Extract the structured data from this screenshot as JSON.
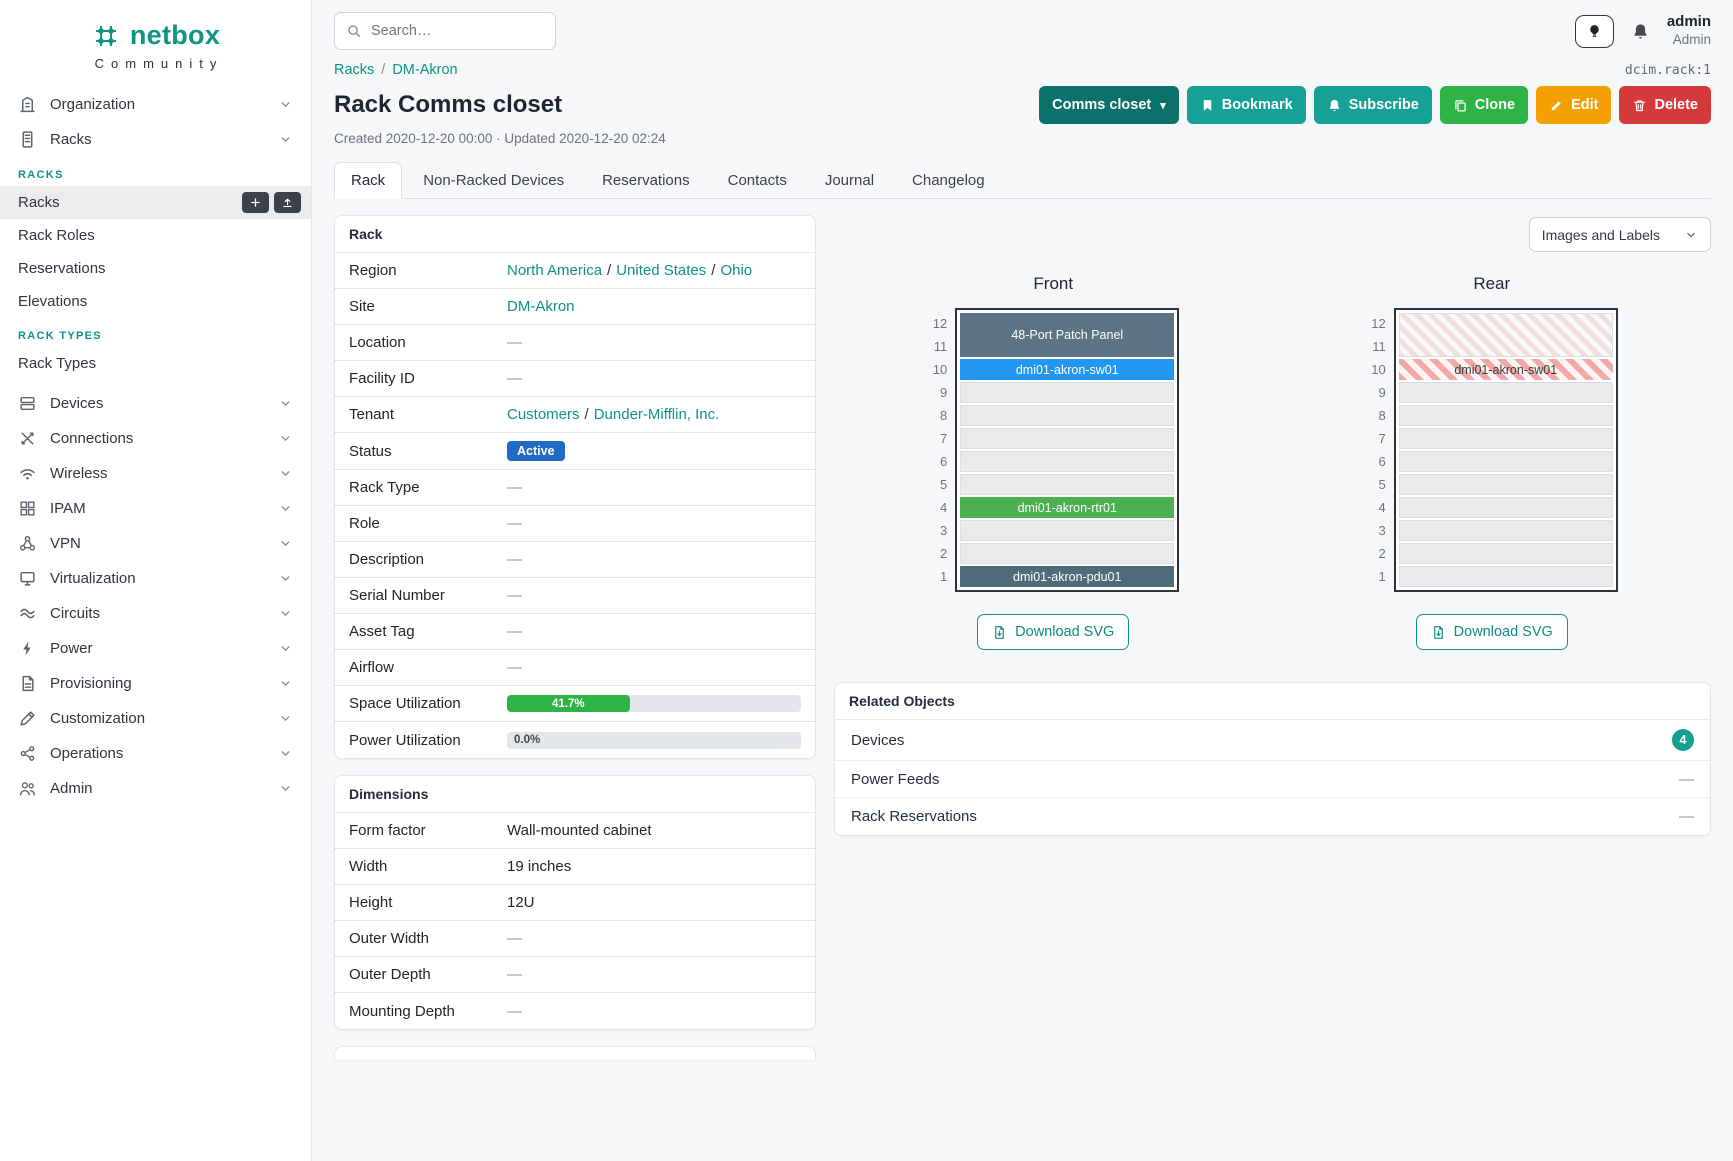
{
  "misc": {
    "sep": "/",
    "dash": "—"
  },
  "brand": {
    "name": "netbox",
    "tagline": "Community"
  },
  "topbar": {
    "search_placeholder": "Search…",
    "user_name": "admin",
    "user_role": "Admin"
  },
  "sidebar": {
    "items": [
      {
        "label": "Organization"
      },
      {
        "label": "Racks"
      },
      {
        "label": "Devices"
      },
      {
        "label": "Connections"
      },
      {
        "label": "Wireless"
      },
      {
        "label": "IPAM"
      },
      {
        "label": "VPN"
      },
      {
        "label": "Virtualization"
      },
      {
        "label": "Circuits"
      },
      {
        "label": "Power"
      },
      {
        "label": "Provisioning"
      },
      {
        "label": "Customization"
      },
      {
        "label": "Operations"
      },
      {
        "label": "Admin"
      }
    ],
    "racks_sections": [
      {
        "header": "RACKS",
        "items": [
          "Racks",
          "Rack Roles",
          "Reservations",
          "Elevations"
        ]
      },
      {
        "header": "RACK TYPES",
        "items": [
          "Rack Types"
        ]
      }
    ]
  },
  "breadcrumb": {
    "items": [
      "Racks",
      "DM-Akron"
    ]
  },
  "object_id": "dcim.rack:1",
  "page": {
    "title": "Rack Comms closet",
    "meta": "Created 2020-12-20 00:00 · Updated 2020-12-20 02:24"
  },
  "actions": {
    "context": "Comms closet",
    "bookmark": "Bookmark",
    "subscribe": "Subscribe",
    "clone": "Clone",
    "edit": "Edit",
    "delete": "Delete"
  },
  "tabs": [
    "Rack",
    "Non-Racked Devices",
    "Reservations",
    "Contacts",
    "Journal",
    "Changelog"
  ],
  "rack_panel": {
    "title": "Rack",
    "rows": {
      "region_label": "Region",
      "region": [
        "North America",
        "United States",
        "Ohio"
      ],
      "site_label": "Site",
      "site": "DM-Akron",
      "location_label": "Location",
      "facility_label": "Facility ID",
      "tenant_label": "Tenant",
      "tenant": [
        "Customers",
        "Dunder-Mifflin, Inc."
      ],
      "status_label": "Status",
      "status": "Active",
      "rack_type_label": "Rack Type",
      "role_label": "Role",
      "description_label": "Description",
      "serial_label": "Serial Number",
      "asset_label": "Asset Tag",
      "airflow_label": "Airflow",
      "space_label": "Space Utilization",
      "power_label": "Power Utilization"
    },
    "space_utilization": {
      "percent": 41.7,
      "label": "41.7%"
    },
    "power_utilization": {
      "percent": 0,
      "label": "0.0%"
    }
  },
  "dimensions_panel": {
    "title": "Dimensions",
    "rows": [
      {
        "label": "Form factor",
        "value": "Wall-mounted cabinet"
      },
      {
        "label": "Width",
        "value": "19 inches"
      },
      {
        "label": "Height",
        "value": "12U"
      },
      {
        "label": "Outer Width",
        "value": "—"
      },
      {
        "label": "Outer Depth",
        "value": "—"
      },
      {
        "label": "Mounting Depth",
        "value": "—"
      }
    ]
  },
  "elevation": {
    "display_select": "Images and Labels",
    "download_label": "Download SVG",
    "unit_count": 12,
    "racks": [
      {
        "title": "Front",
        "slots": [
          {
            "span": 2,
            "label": "48-Port Patch Panel",
            "bg": "#5d7383",
            "fg": "#ffffff"
          },
          {
            "span": 1,
            "label": "dmi01-akron-sw01",
            "bg": "#2196f3",
            "fg": "#ffffff"
          },
          {
            "span": 1,
            "empty": true
          },
          {
            "span": 1,
            "empty": true
          },
          {
            "span": 1,
            "empty": true
          },
          {
            "span": 1,
            "empty": true
          },
          {
            "span": 1,
            "empty": true
          },
          {
            "span": 1,
            "label": "dmi01-akron-rtr01",
            "bg": "#4caf50",
            "fg": "#ffffff"
          },
          {
            "span": 1,
            "empty": true
          },
          {
            "span": 1,
            "empty": true
          },
          {
            "span": 1,
            "label": "dmi01-akron-pdu01",
            "bg": "#4f6b7a",
            "fg": "#ffffff"
          }
        ]
      },
      {
        "title": "Rear",
        "slots": [
          {
            "span": 2,
            "hatch": "light"
          },
          {
            "span": 1,
            "label": "dmi01-akron-sw01",
            "hatch": "red",
            "fg": "#343b42"
          },
          {
            "span": 1,
            "empty": true
          },
          {
            "span": 1,
            "empty": true
          },
          {
            "span": 1,
            "empty": true
          },
          {
            "span": 1,
            "empty": true
          },
          {
            "span": 1,
            "empty": true
          },
          {
            "span": 1,
            "empty": true
          },
          {
            "span": 1,
            "empty": true
          },
          {
            "span": 1,
            "empty": true
          },
          {
            "span": 1,
            "empty": true
          }
        ]
      }
    ]
  },
  "related_objects": {
    "title": "Related Objects",
    "rows": [
      {
        "label": "Devices",
        "badge": "4"
      },
      {
        "label": "Power Feeds",
        "value": "—"
      },
      {
        "label": "Rack Reservations",
        "value": "—"
      }
    ]
  },
  "colors": {
    "accent": "#0e9384",
    "status_active": "#206bc4",
    "utilization_green": "#2fb344",
    "button_teal": "#16a096",
    "button_dark_teal": "#0a716b",
    "button_green": "#2fb344",
    "button_orange": "#f59f00",
    "button_red": "#d63939",
    "device_switch_blue": "#2196f3",
    "device_router_green": "#4caf50",
    "device_panel_slate": "#5d7383",
    "device_pdu_slate": "#4f6b7a",
    "rear_hatch_red": "#f2a9a5"
  }
}
